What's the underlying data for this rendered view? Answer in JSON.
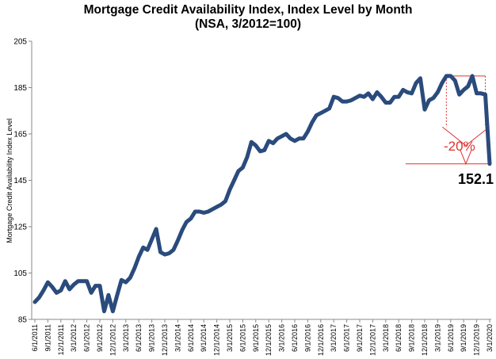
{
  "chart_data": {
    "type": "line",
    "title": "Mortgage Credit Availability Index, Index Level by Month",
    "subtitle": "(NSA, 3/2012=100)",
    "ylabel": "Mortgage Credit Availability Index Level",
    "xlabel": "",
    "ylim": [
      85,
      205
    ],
    "yticks": [
      "85",
      "105",
      "125",
      "145",
      "165",
      "185",
      "205"
    ],
    "x_tick_labels": [
      "6/1/2011",
      "9/1/2011",
      "12/1/2011",
      "3/1/2012",
      "6/1/2012",
      "9/1/2012",
      "12/1/2012",
      "3/1/2013",
      "6/1/2013",
      "9/1/2013",
      "12/1/2013",
      "3/1/2014",
      "6/1/2014",
      "9/1/2014",
      "12/1/2014",
      "3/1/2015",
      "6/1/2015",
      "9/1/2015",
      "12/1/2015",
      "3/1/2016",
      "6/1/2016",
      "9/1/2016",
      "12/1/2016",
      "3/1/2017",
      "6/1/2017",
      "9/1/2017",
      "12/1/2017",
      "3/1/2018",
      "6/1/2018",
      "9/1/2018",
      "12/1/2018",
      "3/1/2019",
      "6/1/2019",
      "9/1/2019",
      "12/1/2019",
      "3/1/2020"
    ],
    "grid": false,
    "line_color": "#2a4b7c",
    "x": [
      "6/1/2011",
      "7/1/2011",
      "8/1/2011",
      "9/1/2011",
      "10/1/2011",
      "11/1/2011",
      "12/1/2011",
      "1/1/2012",
      "2/1/2012",
      "3/1/2012",
      "4/1/2012",
      "5/1/2012",
      "6/1/2012",
      "7/1/2012",
      "8/1/2012",
      "9/1/2012",
      "10/1/2012",
      "11/1/2012",
      "12/1/2012",
      "1/1/2013",
      "2/1/2013",
      "3/1/2013",
      "4/1/2013",
      "5/1/2013",
      "6/1/2013",
      "7/1/2013",
      "8/1/2013",
      "9/1/2013",
      "10/1/2013",
      "11/1/2013",
      "12/1/2013",
      "1/1/2014",
      "2/1/2014",
      "3/1/2014",
      "4/1/2014",
      "5/1/2014",
      "6/1/2014",
      "7/1/2014",
      "8/1/2014",
      "9/1/2014",
      "10/1/2014",
      "11/1/2014",
      "12/1/2014",
      "1/1/2015",
      "2/1/2015",
      "3/1/2015",
      "4/1/2015",
      "5/1/2015",
      "6/1/2015",
      "7/1/2015",
      "8/1/2015",
      "9/1/2015",
      "10/1/2015",
      "11/1/2015",
      "12/1/2015",
      "1/1/2016",
      "2/1/2016",
      "3/1/2016",
      "4/1/2016",
      "5/1/2016",
      "6/1/2016",
      "7/1/2016",
      "8/1/2016",
      "9/1/2016",
      "10/1/2016",
      "11/1/2016",
      "12/1/2016",
      "1/1/2017",
      "2/1/2017",
      "3/1/2017",
      "4/1/2017",
      "5/1/2017",
      "6/1/2017",
      "7/1/2017",
      "8/1/2017",
      "9/1/2017",
      "10/1/2017",
      "11/1/2017",
      "12/1/2017",
      "1/1/2018",
      "2/1/2018",
      "3/1/2018",
      "4/1/2018",
      "5/1/2018",
      "6/1/2018",
      "7/1/2018",
      "8/1/2018",
      "9/1/2018",
      "10/1/2018",
      "11/1/2018",
      "12/1/2018",
      "1/1/2019",
      "2/1/2019",
      "3/1/2019",
      "4/1/2019",
      "5/1/2019",
      "6/1/2019",
      "7/1/2019",
      "8/1/2019",
      "9/1/2019",
      "10/1/2019",
      "11/1/2019",
      "12/1/2019",
      "1/1/2020",
      "2/1/2020",
      "3/1/2020"
    ],
    "series": [
      {
        "values": [
          92.5,
          94.5,
          97.5,
          101,
          99,
          96.5,
          97.5,
          101.5,
          98,
          100,
          101.5,
          101.5,
          101.5,
          96.5,
          99.5,
          99.5,
          88.5,
          95.5,
          88.5,
          95.5,
          102,
          101,
          103,
          107,
          112,
          116,
          115,
          119.5,
          124,
          114,
          113,
          113.5,
          115,
          119,
          123.5,
          127,
          128.5,
          131.5,
          131.5,
          131,
          131.5,
          132.5,
          133.5,
          134.5,
          136,
          141,
          145,
          149,
          150.5,
          155,
          161.5,
          160,
          157.5,
          158,
          162,
          161,
          163,
          164,
          165,
          163,
          162,
          163,
          163,
          166,
          170,
          173,
          174,
          175,
          176,
          181,
          180.5,
          179,
          179,
          179.5,
          180.5,
          181.5,
          181,
          182.5,
          180,
          183,
          181,
          178.5,
          178.5,
          181,
          181,
          184,
          183,
          182.5,
          187,
          189,
          175.5,
          179.5,
          180.5,
          183,
          187,
          190,
          190,
          188,
          182,
          184,
          185.5,
          190,
          182.5,
          182.5,
          182,
          152.1
        ]
      }
    ],
    "annotations": {
      "pct_change": "-20%",
      "end_value": "152.1"
    }
  }
}
